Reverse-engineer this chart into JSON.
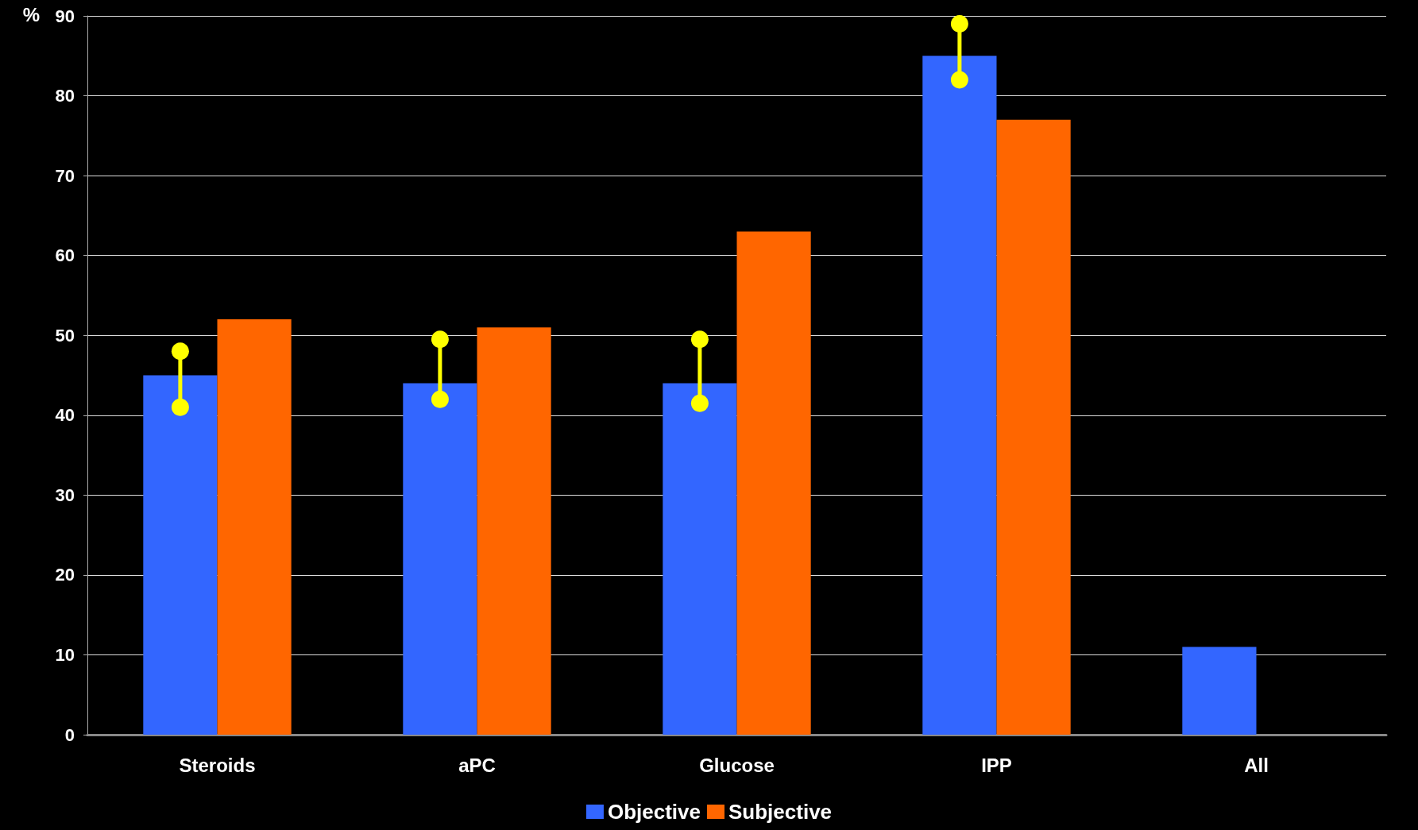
{
  "chart_data": {
    "type": "bar",
    "ylabel": "%",
    "categories": [
      "Steroids",
      "aPC",
      "Glucose",
      "IPP",
      "All"
    ],
    "series": [
      {
        "name": "Objective",
        "color": "#3366ff",
        "values": [
          45,
          44,
          44,
          85,
          11
        ]
      },
      {
        "type": "line",
        "color": "#ffff00",
        "x": [
          "Steroids",
          "Steroids",
          "Steroids",
          "aPC",
          "aPC",
          "aPC",
          "Glucose",
          "Glucose",
          "Glucose",
          "IPP",
          "IPP"
        ],
        "values": [
          41,
          48,
          null,
          42,
          49.5,
          null,
          41.5,
          49.5,
          null,
          82,
          89
        ],
        "marker": "circle"
      },
      {
        "name": "Subjective",
        "color": "#ff6600",
        "values": [
          52,
          51,
          63,
          77,
          null
        ]
      }
    ],
    "ylim": [
      0,
      90
    ],
    "yticks": [
      0,
      10,
      20,
      30,
      40,
      50,
      60,
      70,
      80,
      90
    ],
    "grid": "y",
    "legend": "bottom"
  }
}
